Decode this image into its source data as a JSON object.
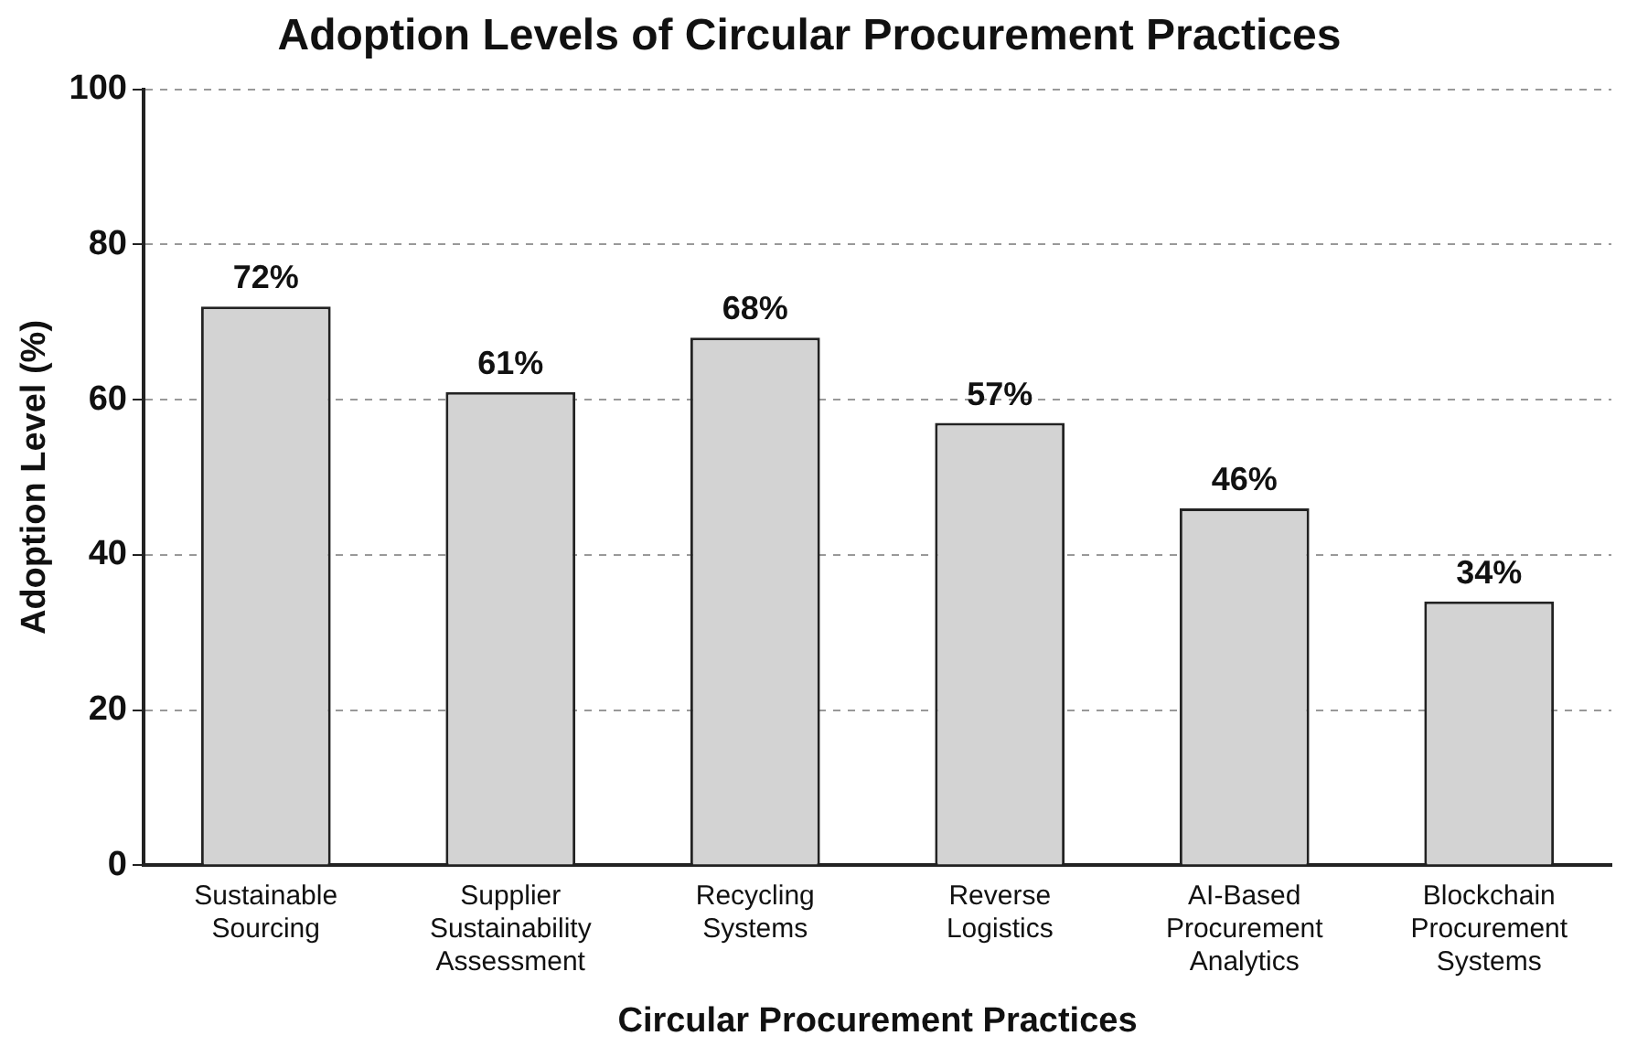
{
  "chart_data": {
    "type": "bar",
    "title": "Adoption Levels of Circular Procurement Practices",
    "xlabel": "Circular Procurement Practices",
    "ylabel": "Adoption Level (%)",
    "categories": [
      "Sustainable Sourcing",
      "Supplier Sustainability Assessment",
      "Recycling Systems",
      "Reverse Logistics",
      "AI-Based Procurement Analytics",
      "Blockchain Procurement Systems"
    ],
    "values": [
      72,
      61,
      68,
      57,
      46,
      34
    ],
    "value_labels": [
      "72%",
      "61%",
      "68%",
      "57%",
      "46%",
      "34%"
    ],
    "color": "#d3d3d3",
    "ylim": [
      0,
      100
    ],
    "yticks": [
      0,
      20,
      40,
      60,
      80,
      100
    ],
    "grid": "y",
    "legend": false
  }
}
